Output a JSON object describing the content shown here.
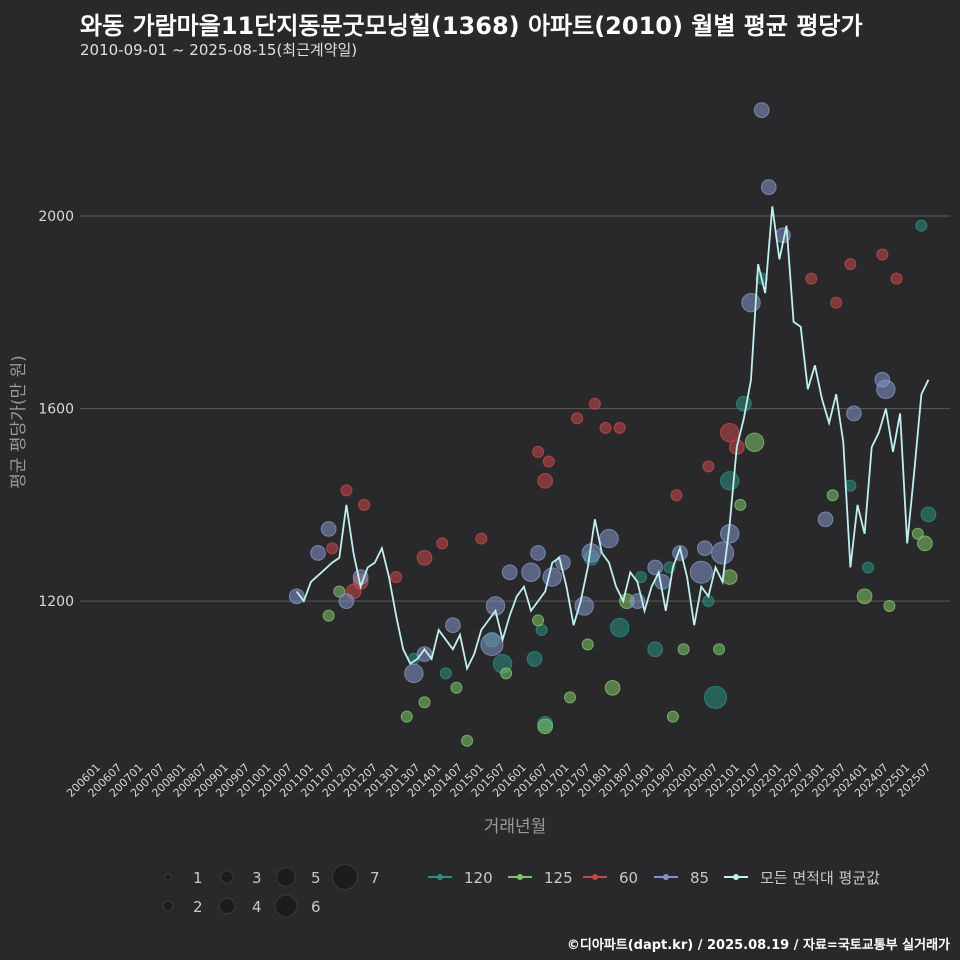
{
  "header": {
    "title": "와동 가람마을11단지동문굿모닝힐(1368) 아파트(2010) 월별 평균 평당가",
    "subtitle": "2010-09-01 ~ 2025-08-15(최근계약일)"
  },
  "footer": {
    "credit": "©디아파트(dapt.kr) / 2025.08.19 / 자료=국토교통부 실거래가"
  },
  "colors": {
    "background": "#29292b",
    "grid": "#5a5a5c",
    "series_120": "#2a8f7f",
    "series_125": "#7fc46a",
    "series_60": "#c44848",
    "series_85": "#8395c8",
    "series_avg": "#bff0ee"
  },
  "chart_data": {
    "type": "scatter",
    "xlabel": "거래년월",
    "ylabel": "평균 평당가(만 원)",
    "ylim": [
      870,
      2320
    ],
    "yticks": [
      1200,
      1600,
      2000
    ],
    "xlim": [
      "2006-01",
      "2025-08"
    ],
    "xticks": [
      "200601",
      "200607",
      "200701",
      "200707",
      "200801",
      "200807",
      "200901",
      "200907",
      "201001",
      "201007",
      "201101",
      "201107",
      "201201",
      "201207",
      "201301",
      "201307",
      "201401",
      "201407",
      "201501",
      "201507",
      "201601",
      "201607",
      "201701",
      "201707",
      "201801",
      "201807",
      "201901",
      "201907",
      "202001",
      "202007",
      "202101",
      "202107",
      "202201",
      "202207",
      "202301",
      "202307",
      "202401",
      "202407",
      "202501",
      "202507"
    ],
    "grid": "horizontal",
    "legend": {
      "size_title": "",
      "size_entries": [
        1,
        2,
        3,
        4,
        5,
        6,
        7
      ],
      "series_entries": [
        "120",
        "125",
        "60",
        "85",
        "모든 면적대 평균값"
      ]
    },
    "series": [
      {
        "name": "120",
        "points": [
          [
            "2013-06",
            1080,
            2
          ],
          [
            "2014-03",
            1050,
            2
          ],
          [
            "2015-04",
            1120,
            3
          ],
          [
            "2015-07",
            1070,
            4
          ],
          [
            "2016-04",
            1080,
            3
          ],
          [
            "2016-06",
            1140,
            2
          ],
          [
            "2016-07",
            945,
            3
          ],
          [
            "2017-08",
            1290,
            3
          ],
          [
            "2018-04",
            1145,
            4
          ],
          [
            "2018-10",
            1250,
            2
          ],
          [
            "2019-02",
            1100,
            3
          ],
          [
            "2019-06",
            1270,
            2
          ],
          [
            "2020-05",
            1200,
            2
          ],
          [
            "2020-07",
            1000,
            5
          ],
          [
            "2020-11",
            1450,
            4
          ],
          [
            "2021-03",
            1610,
            3
          ],
          [
            "2021-08",
            1870,
            2
          ],
          [
            "2023-09",
            1440,
            2
          ],
          [
            "2024-02",
            1270,
            2
          ],
          [
            "2025-05",
            1980,
            2
          ],
          [
            "2025-07",
            1380,
            3
          ]
        ]
      },
      {
        "name": "125",
        "points": [
          [
            "2011-06",
            1170,
            2
          ],
          [
            "2011-09",
            1220,
            2
          ],
          [
            "2013-04",
            960,
            2
          ],
          [
            "2013-09",
            990,
            2
          ],
          [
            "2014-06",
            1020,
            2
          ],
          [
            "2014-09",
            910,
            2
          ],
          [
            "2015-08",
            1050,
            2
          ],
          [
            "2016-05",
            1160,
            2
          ],
          [
            "2016-07",
            940,
            3
          ],
          [
            "2017-02",
            1000,
            2
          ],
          [
            "2017-07",
            1110,
            2
          ],
          [
            "2018-02",
            1020,
            3
          ],
          [
            "2018-06",
            1200,
            3
          ],
          [
            "2019-07",
            960,
            2
          ],
          [
            "2019-10",
            1100,
            2
          ],
          [
            "2020-08",
            1100,
            2
          ],
          [
            "2020-11",
            1250,
            3
          ],
          [
            "2021-02",
            1400,
            2
          ],
          [
            "2021-06",
            1530,
            4
          ],
          [
            "2023-04",
            1420,
            2
          ],
          [
            "2024-01",
            1210,
            3
          ],
          [
            "2024-08",
            1190,
            2
          ],
          [
            "2025-04",
            1340,
            2
          ],
          [
            "2025-06",
            1320,
            3
          ]
        ]
      },
      {
        "name": "60",
        "points": [
          [
            "2011-07",
            1310,
            2
          ],
          [
            "2011-11",
            1430,
            2
          ],
          [
            "2012-01",
            1220,
            3
          ],
          [
            "2012-03",
            1240,
            3
          ],
          [
            "2012-04",
            1400,
            2
          ],
          [
            "2013-01",
            1250,
            2
          ],
          [
            "2013-09",
            1290,
            3
          ],
          [
            "2014-02",
            1320,
            2
          ],
          [
            "2015-01",
            1330,
            2
          ],
          [
            "2016-05",
            1510,
            2
          ],
          [
            "2016-07",
            1450,
            3
          ],
          [
            "2016-08",
            1490,
            2
          ],
          [
            "2017-04",
            1580,
            2
          ],
          [
            "2017-09",
            1610,
            2
          ],
          [
            "2017-12",
            1560,
            2
          ],
          [
            "2018-04",
            1560,
            2
          ],
          [
            "2019-08",
            1420,
            2
          ],
          [
            "2020-05",
            1480,
            2
          ],
          [
            "2020-11",
            1550,
            4
          ],
          [
            "2021-01",
            1520,
            3
          ],
          [
            "2022-10",
            1870,
            2
          ],
          [
            "2023-05",
            1820,
            2
          ],
          [
            "2023-09",
            1900,
            2
          ],
          [
            "2024-06",
            1920,
            2
          ],
          [
            "2024-10",
            1870,
            2
          ]
        ]
      },
      {
        "name": "85",
        "points": [
          [
            "2010-09",
            1210,
            3
          ],
          [
            "2011-03",
            1300,
            3
          ],
          [
            "2011-06",
            1350,
            3
          ],
          [
            "2011-11",
            1200,
            3
          ],
          [
            "2012-03",
            1250,
            3
          ],
          [
            "2013-06",
            1050,
            4
          ],
          [
            "2013-09",
            1090,
            3
          ],
          [
            "2014-05",
            1150,
            3
          ],
          [
            "2015-04",
            1110,
            5
          ],
          [
            "2015-05",
            1190,
            4
          ],
          [
            "2015-09",
            1260,
            3
          ],
          [
            "2016-03",
            1260,
            4
          ],
          [
            "2016-05",
            1300,
            3
          ],
          [
            "2016-09",
            1250,
            4
          ],
          [
            "2016-12",
            1280,
            3
          ],
          [
            "2017-06",
            1190,
            4
          ],
          [
            "2017-08",
            1300,
            4
          ],
          [
            "2018-01",
            1330,
            4
          ],
          [
            "2018-09",
            1200,
            3
          ],
          [
            "2019-02",
            1270,
            3
          ],
          [
            "2019-04",
            1240,
            3
          ],
          [
            "2019-09",
            1300,
            3
          ],
          [
            "2020-03",
            1260,
            5
          ],
          [
            "2020-04",
            1310,
            3
          ],
          [
            "2020-09",
            1300,
            5
          ],
          [
            "2020-11",
            1340,
            4
          ],
          [
            "2021-05",
            1820,
            4
          ],
          [
            "2021-08",
            2220,
            3
          ],
          [
            "2021-10",
            2060,
            3
          ],
          [
            "2022-02",
            1960,
            3
          ],
          [
            "2023-02",
            1370,
            3
          ],
          [
            "2023-10",
            1590,
            3
          ],
          [
            "2024-06",
            1660,
            3
          ],
          [
            "2024-07",
            1640,
            4
          ]
        ]
      },
      {
        "name": "모든 면적대 평균값",
        "points": [
          [
            "2010-09",
            1220
          ],
          [
            "2010-11",
            1200
          ],
          [
            "2011-01",
            1240
          ],
          [
            "2011-04",
            1260
          ],
          [
            "2011-07",
            1280
          ],
          [
            "2011-09",
            1290
          ],
          [
            "2011-11",
            1400
          ],
          [
            "2012-01",
            1300
          ],
          [
            "2012-03",
            1230
          ],
          [
            "2012-05",
            1270
          ],
          [
            "2012-07",
            1280
          ],
          [
            "2012-09",
            1310
          ],
          [
            "2012-11",
            1250
          ],
          [
            "2013-01",
            1170
          ],
          [
            "2013-03",
            1100
          ],
          [
            "2013-05",
            1070
          ],
          [
            "2013-07",
            1080
          ],
          [
            "2013-09",
            1100
          ],
          [
            "2013-11",
            1080
          ],
          [
            "2014-01",
            1140
          ],
          [
            "2014-03",
            1120
          ],
          [
            "2014-05",
            1100
          ],
          [
            "2014-07",
            1130
          ],
          [
            "2014-09",
            1060
          ],
          [
            "2014-11",
            1090
          ],
          [
            "2015-01",
            1140
          ],
          [
            "2015-03",
            1160
          ],
          [
            "2015-05",
            1180
          ],
          [
            "2015-07",
            1120
          ],
          [
            "2015-09",
            1170
          ],
          [
            "2015-11",
            1210
          ],
          [
            "2016-01",
            1230
          ],
          [
            "2016-03",
            1180
          ],
          [
            "2016-05",
            1200
          ],
          [
            "2016-07",
            1220
          ],
          [
            "2016-09",
            1280
          ],
          [
            "2016-11",
            1290
          ],
          [
            "2017-01",
            1230
          ],
          [
            "2017-03",
            1150
          ],
          [
            "2017-05",
            1200
          ],
          [
            "2017-07",
            1270
          ],
          [
            "2017-09",
            1370
          ],
          [
            "2017-11",
            1300
          ],
          [
            "2018-01",
            1280
          ],
          [
            "2018-03",
            1230
          ],
          [
            "2018-05",
            1200
          ],
          [
            "2018-07",
            1260
          ],
          [
            "2018-09",
            1240
          ],
          [
            "2018-11",
            1180
          ],
          [
            "2019-01",
            1230
          ],
          [
            "2019-03",
            1260
          ],
          [
            "2019-05",
            1180
          ],
          [
            "2019-07",
            1270
          ],
          [
            "2019-09",
            1310
          ],
          [
            "2019-11",
            1250
          ],
          [
            "2020-01",
            1150
          ],
          [
            "2020-03",
            1230
          ],
          [
            "2020-05",
            1210
          ],
          [
            "2020-07",
            1270
          ],
          [
            "2020-09",
            1240
          ],
          [
            "2020-11",
            1360
          ],
          [
            "2021-01",
            1520
          ],
          [
            "2021-03",
            1580
          ],
          [
            "2021-05",
            1660
          ],
          [
            "2021-07",
            1900
          ],
          [
            "2021-09",
            1840
          ],
          [
            "2021-11",
            2020
          ],
          [
            "2022-01",
            1910
          ],
          [
            "2022-03",
            1980
          ],
          [
            "2022-05",
            1780
          ],
          [
            "2022-07",
            1770
          ],
          [
            "2022-09",
            1640
          ],
          [
            "2022-11",
            1690
          ],
          [
            "2023-01",
            1620
          ],
          [
            "2023-03",
            1570
          ],
          [
            "2023-05",
            1630
          ],
          [
            "2023-07",
            1530
          ],
          [
            "2023-09",
            1270
          ],
          [
            "2023-11",
            1400
          ],
          [
            "2024-01",
            1340
          ],
          [
            "2024-03",
            1520
          ],
          [
            "2024-05",
            1550
          ],
          [
            "2024-07",
            1600
          ],
          [
            "2024-09",
            1510
          ],
          [
            "2024-11",
            1590
          ],
          [
            "2025-01",
            1320
          ],
          [
            "2025-03",
            1470
          ],
          [
            "2025-05",
            1630
          ],
          [
            "2025-07",
            1660
          ]
        ]
      }
    ]
  }
}
